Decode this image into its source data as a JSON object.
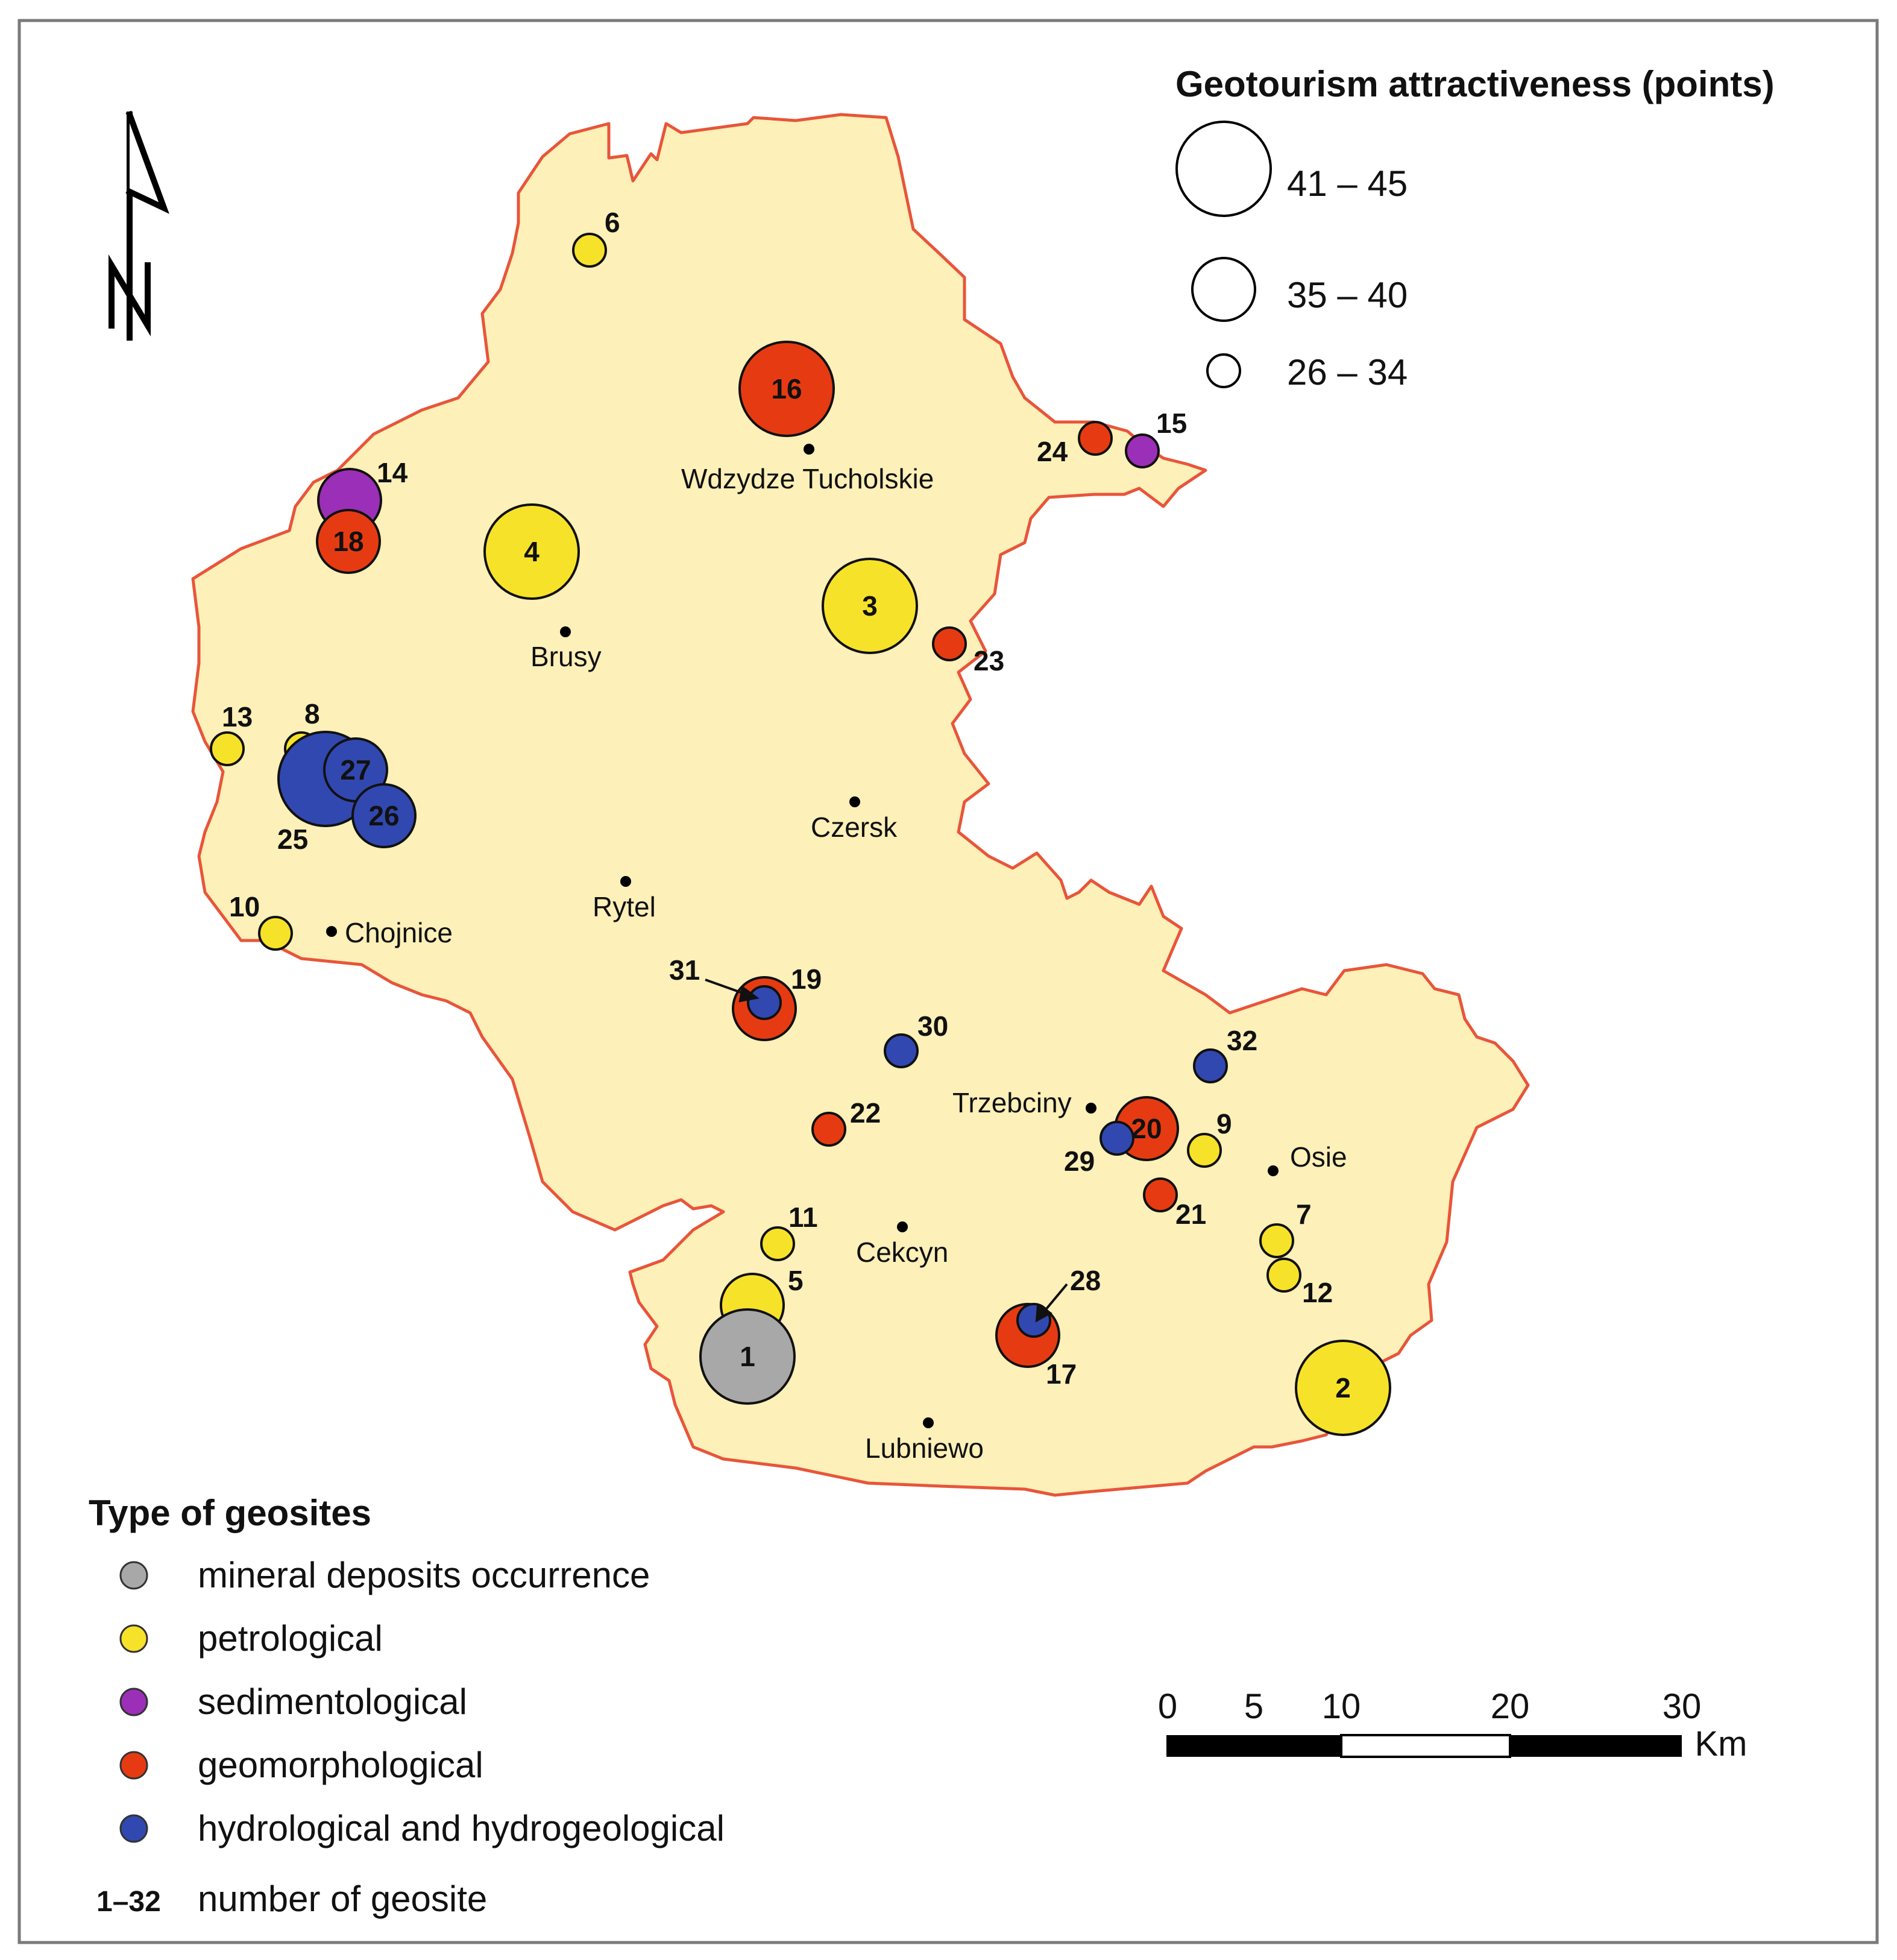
{
  "map": {
    "colors": {
      "region_fill": "#fdf0b8",
      "region_border": "#e8553a",
      "mineral": "#a8a8a8",
      "petrological": "#f7e22a",
      "sedimentological": "#9b2fb8",
      "geomorphological": "#e63b12",
      "hydrological": "#3148b0"
    },
    "north_arrow": {
      "icon": "north-arrow-icon",
      "label": "N"
    },
    "towns": [
      {
        "name": "Wdzydze Tucholskie"
      },
      {
        "name": "Brusy"
      },
      {
        "name": "Czersk"
      },
      {
        "name": "Rytel"
      },
      {
        "name": "Chojnice"
      },
      {
        "name": "Trzebciny"
      },
      {
        "name": "Osie"
      },
      {
        "name": "Cekcyn"
      },
      {
        "name": "Lubniewo"
      }
    ],
    "geosites": [
      {
        "id": "1",
        "type": "mineral",
        "points_class": "41 – 45"
      },
      {
        "id": "2",
        "type": "petrological",
        "points_class": "41 – 45"
      },
      {
        "id": "3",
        "type": "petrological",
        "points_class": "41 – 45"
      },
      {
        "id": "4",
        "type": "petrological",
        "points_class": "41 – 45"
      },
      {
        "id": "5",
        "type": "petrological",
        "points_class": "35 – 40"
      },
      {
        "id": "6",
        "type": "petrological",
        "points_class": "26 – 34"
      },
      {
        "id": "7",
        "type": "petrological",
        "points_class": "26 – 34"
      },
      {
        "id": "8",
        "type": "petrological",
        "points_class": "26 – 34"
      },
      {
        "id": "9",
        "type": "petrological",
        "points_class": "26 – 34"
      },
      {
        "id": "10",
        "type": "petrological",
        "points_class": "26 – 34"
      },
      {
        "id": "11",
        "type": "petrological",
        "points_class": "26 – 34"
      },
      {
        "id": "12",
        "type": "petrological",
        "points_class": "26 – 34"
      },
      {
        "id": "13",
        "type": "petrological",
        "points_class": "26 – 34"
      },
      {
        "id": "14",
        "type": "sedimentological",
        "points_class": "35 – 40"
      },
      {
        "id": "15",
        "type": "sedimentological",
        "points_class": "26 – 34"
      },
      {
        "id": "16",
        "type": "geomorphological",
        "points_class": "41 – 45"
      },
      {
        "id": "17",
        "type": "geomorphological",
        "points_class": "35 – 40"
      },
      {
        "id": "18",
        "type": "geomorphological",
        "points_class": "35 – 40"
      },
      {
        "id": "19",
        "type": "geomorphological",
        "points_class": "35 – 40"
      },
      {
        "id": "20",
        "type": "geomorphological",
        "points_class": "35 – 40"
      },
      {
        "id": "21",
        "type": "geomorphological",
        "points_class": "26 – 34"
      },
      {
        "id": "22",
        "type": "geomorphological",
        "points_class": "26 – 34"
      },
      {
        "id": "23",
        "type": "geomorphological",
        "points_class": "26 – 34"
      },
      {
        "id": "24",
        "type": "geomorphological",
        "points_class": "26 – 34"
      },
      {
        "id": "25",
        "type": "hydrological",
        "points_class": "41 – 45"
      },
      {
        "id": "26",
        "type": "hydrological",
        "points_class": "35 – 40"
      },
      {
        "id": "27",
        "type": "hydrological",
        "points_class": "35 – 40"
      },
      {
        "id": "28",
        "type": "hydrological",
        "points_class": "26 – 34"
      },
      {
        "id": "29",
        "type": "hydrological",
        "points_class": "26 – 34"
      },
      {
        "id": "30",
        "type": "hydrological",
        "points_class": "26 – 34"
      },
      {
        "id": "31",
        "type": "hydrological",
        "points_class": "26 – 34"
      },
      {
        "id": "32",
        "type": "hydrological",
        "points_class": "26 – 34"
      }
    ]
  },
  "size_legend": {
    "title": "Geotourism attractiveness (points)",
    "classes": [
      "41 – 45",
      "35 – 40",
      "26 – 34"
    ]
  },
  "type_legend": {
    "title": "Type of geosites",
    "items": [
      {
        "key": "mineral",
        "label": "mineral deposits occurrence"
      },
      {
        "key": "petrological",
        "label": "petrological"
      },
      {
        "key": "sedimentological",
        "label": "sedimentological"
      },
      {
        "key": "geomorphological",
        "label": "geomorphological"
      },
      {
        "key": "hydrological",
        "label": "hydrological and hydrogeological"
      }
    ],
    "number_key": "1–32",
    "number_label": "number of geosite"
  },
  "scale_bar": {
    "ticks": [
      "0",
      "5",
      "10",
      "20",
      "30"
    ],
    "unit": "Km"
  }
}
